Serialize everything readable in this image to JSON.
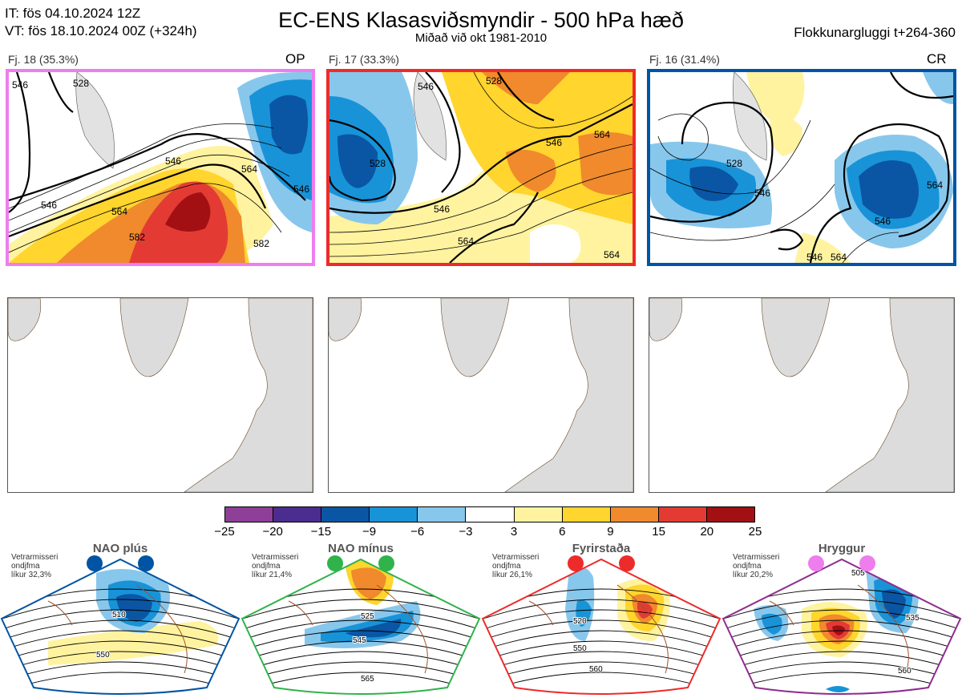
{
  "header": {
    "init_time": "IT: fös 04.10.2024 12Z",
    "valid_time": "VT: fös 18.10.2024 00Z  (+324h)",
    "title": "EC-ENS Klasasviðsmyndir - 500 hPa hæð",
    "subtitle": "Miðað við okt 1981-2010",
    "window": "Flokkunargluggi t+264-360"
  },
  "clusters": [
    {
      "label": "Fj. 18 (35.3%)",
      "tag": "OP",
      "border": "#ee7dee",
      "contours": [
        "546",
        "528",
        "546",
        "546",
        "564",
        "564",
        "582",
        "582",
        "546"
      ]
    },
    {
      "label": "Fj. 17 (33.3%)",
      "tag": "",
      "border": "#ee2b2b",
      "contours": [
        "528",
        "546",
        "546",
        "528",
        "546",
        "564",
        "564",
        "564"
      ]
    },
    {
      "label": "Fj. 16 (31.4%)",
      "tag": "CR",
      "border": "#0054a3",
      "contours": [
        "528",
        "546",
        "546",
        "564",
        "546",
        "564"
      ]
    }
  ],
  "colorbar": {
    "ticks": [
      "−25",
      "−20",
      "−15",
      "−9",
      "−6",
      "−3",
      "3",
      "6",
      "9",
      "15",
      "20",
      "25"
    ],
    "colors": [
      "#8e3f98",
      "#4b2d8f",
      "#0a56a4",
      "#1893d8",
      "#88c7ec",
      "#ffffff",
      "#fff3a0",
      "#ffd52e",
      "#f08a2c",
      "#e33b34",
      "#a31013"
    ]
  },
  "regimes": [
    {
      "name": "NAO plús",
      "note": [
        "Vetrarmisseri",
        "ondjfma",
        "líkur 32,3%"
      ],
      "dot_color": "#0054a3",
      "border": "#0054a3",
      "contours": [
        "510",
        "550"
      ]
    },
    {
      "name": "NAO mínus",
      "note": [
        "Vetrarmisseri",
        "ondjfma",
        "líkur 21,4%"
      ],
      "dot_color": "#2fb34a",
      "border": "#2fb34a",
      "contours": [
        "525",
        "545",
        "565"
      ]
    },
    {
      "name": "Fyrirstaða",
      "note": [
        "Vetrarmisseri",
        "ondjfma",
        "líkur 26,1%"
      ],
      "dot_color": "#ee2b2b",
      "border": "#ee2b2b",
      "contours": [
        "520",
        "550",
        "560"
      ]
    },
    {
      "name": "Hryggur",
      "note": [
        "Vetrarmisseri",
        "ondjfma",
        "líkur 20,2%"
      ],
      "dot_color": "#ee7dee",
      "border": "#8e2c8e",
      "contours": [
        "505",
        "535",
        "560"
      ]
    }
  ]
}
